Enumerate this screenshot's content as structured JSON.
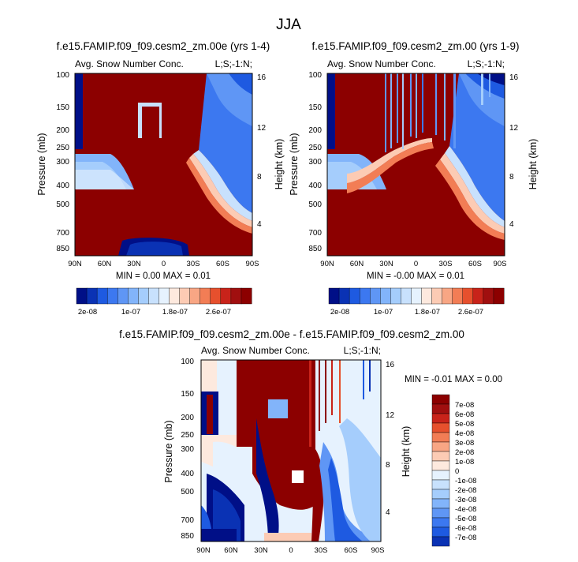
{
  "figure": {
    "title": "JJA"
  },
  "colors": {
    "diverging": [
      "#000f87",
      "#0a32b4",
      "#1e5ae1",
      "#3c78f0",
      "#5f96f5",
      "#82b4fa",
      "#a5cdfc",
      "#c8e1fd",
      "#e6f2fe",
      "#fde9de",
      "#fccbb4",
      "#f8a684",
      "#f27d55",
      "#e6502d",
      "#c8231a",
      "#a00f0f",
      "#8c0000"
    ],
    "background": "#ffffff"
  },
  "chart_data": [
    {
      "type": "heatmap",
      "title": "f.e15.FAMIP.f09_f09.cesm2_zm.00e (yrs 1-4)",
      "left_label": "Avg. Snow Number Conc.",
      "right_label": "L;S;-1:N;",
      "xlabel": "",
      "ylabel": "Pressure (mb)",
      "ylabel_right": "Height (km)",
      "x_ticks": [
        "90N",
        "60N",
        "30N",
        "0",
        "30S",
        "60S",
        "90S"
      ],
      "y_ticks": [
        "100",
        "150",
        "200",
        "250",
        "300",
        "400",
        "500",
        "700",
        "850"
      ],
      "y_ticks_right": [
        "16",
        "12",
        "8",
        "4"
      ],
      "min_max_text": "MIN =  0.00  MAX =  0.01",
      "colorbar_labels": [
        "2e-08",
        "1e-07",
        "1.8e-07",
        "2.6e-07"
      ],
      "ylim": [
        100,
        950
      ],
      "yscale": "log",
      "x_range": [
        "90N",
        "90S"
      ]
    },
    {
      "type": "heatmap",
      "title": "f.e15.FAMIP.f09_f09.cesm2_zm.00 (yrs 1-9)",
      "left_label": "Avg. Snow Number Conc.",
      "right_label": "L;S;-1:N;",
      "xlabel": "",
      "ylabel": "Pressure (mb)",
      "ylabel_right": "Height (km)",
      "x_ticks": [
        "90N",
        "60N",
        "30N",
        "0",
        "30S",
        "60S",
        "90S"
      ],
      "y_ticks": [
        "100",
        "150",
        "200",
        "250",
        "300",
        "400",
        "500",
        "700",
        "850"
      ],
      "y_ticks_right": [
        "16",
        "12",
        "8",
        "4"
      ],
      "min_max_text": "MIN = -0.00  MAX =  0.01",
      "colorbar_labels": [
        "2e-08",
        "1e-07",
        "1.8e-07",
        "2.6e-07"
      ],
      "ylim": [
        100,
        950
      ],
      "yscale": "log",
      "x_range": [
        "90N",
        "90S"
      ]
    },
    {
      "type": "heatmap",
      "title": "f.e15.FAMIP.f09_f09.cesm2_zm.00e - f.e15.FAMIP.f09_f09.cesm2_zm.00",
      "left_label": "Avg. Snow Number Conc.",
      "right_label": "L;S;-1:N;",
      "xlabel": "",
      "ylabel": "Pressure (mb)",
      "ylabel_right": "Height (km)",
      "x_ticks": [
        "90N",
        "60N",
        "30N",
        "0",
        "30S",
        "60S",
        "90S"
      ],
      "y_ticks": [
        "100",
        "150",
        "200",
        "250",
        "300",
        "400",
        "500",
        "700",
        "850"
      ],
      "y_ticks_right": [
        "16",
        "12",
        "8",
        "4"
      ],
      "min_max_text": "MIN = -0.01  MAX =  0.00",
      "colorbar_labels": [
        "7e-08",
        "6e-08",
        "5e-08",
        "4e-08",
        "3e-08",
        "2e-08",
        "1e-08",
        "0",
        "-1e-08",
        "-2e-08",
        "-3e-08",
        "-4e-08",
        "-5e-08",
        "-6e-08",
        "-7e-08"
      ],
      "ylim": [
        100,
        950
      ],
      "yscale": "log",
      "x_range": [
        "90N",
        "90S"
      ]
    }
  ]
}
